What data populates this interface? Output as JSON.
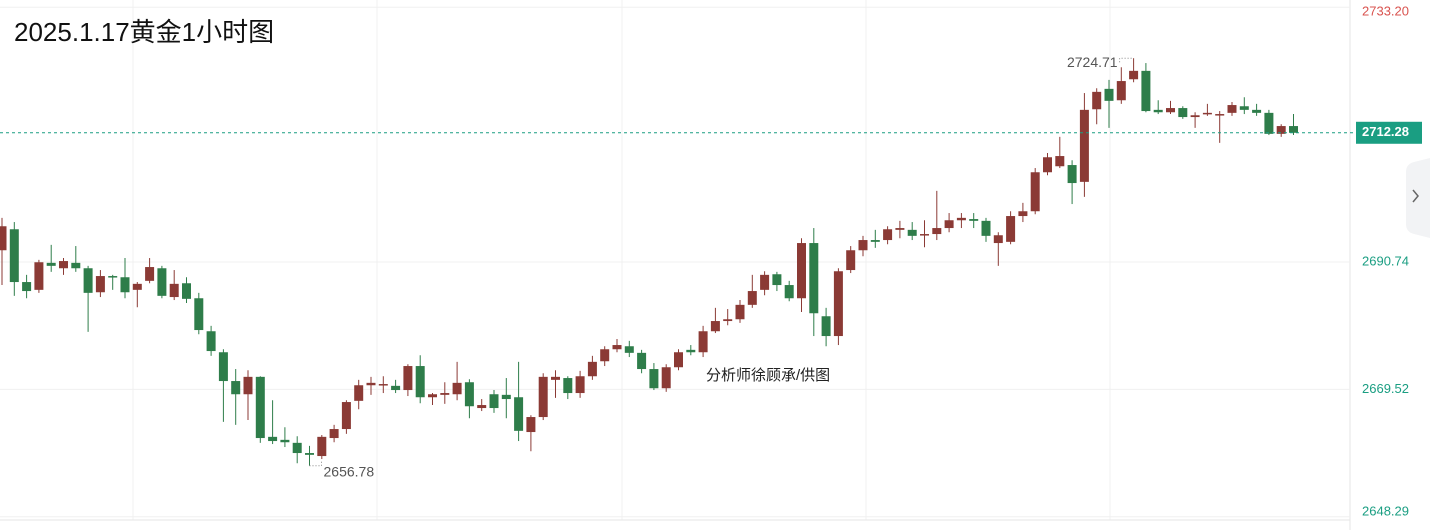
{
  "chart_data": {
    "type": "candlestick",
    "title": "2025.1.17黄金1小时图",
    "watermark": "分析师徐顾承/供图",
    "up_color": "#8b3a35",
    "down_color": "#2e7d4a",
    "tick_up_color": "#d9534f",
    "tick_down_color": "#1a9e82",
    "grid": true,
    "ylim": [
      2647.74,
      2734.41
    ],
    "yticks": [
      {
        "value": 2733.2,
        "label": "2733.20"
      },
      2690.74,
      2669.52,
      2648.29
    ],
    "last_price": 2712.28,
    "high_label": 2724.71,
    "low_label": 2656.78,
    "open": [
      2692.7,
      2696.2,
      2687.4,
      2686.1,
      2690.6,
      2689.7,
      2690.6,
      2689.7,
      2685.7,
      2688.4,
      2688.2,
      2686.1,
      2687.6,
      2689.7,
      2684.9,
      2687.2,
      2684.7,
      2679.2,
      2675.7,
      2670.9,
      2668.7,
      2671.6,
      2661.6,
      2661.1,
      2660.6,
      2658.9,
      2658.4,
      2661.4,
      2662.9,
      2667.6,
      2670.2,
      2670.2,
      2670.1,
      2669.4,
      2673.4,
      2668.2,
      2668.6,
      2668.7,
      2670.7,
      2666.4,
      2668.7,
      2668.6,
      2668.2,
      2662.4,
      2664.9,
      2671.1,
      2671.4,
      2668.9,
      2671.7,
      2674.2,
      2676.2,
      2676.7,
      2675.6,
      2672.9,
      2669.7,
      2673.2,
      2676.1,
      2675.7,
      2679.2,
      2680.9,
      2681.2,
      2683.6,
      2686.1,
      2688.7,
      2686.9,
      2684.7,
      2693.9,
      2681.7,
      2678.4,
      2689.4,
      2692.7,
      2694.4,
      2694.4,
      2696.1,
      2696.1,
      2695.2,
      2695.4,
      2696.4,
      2697.7,
      2697.9,
      2697.6,
      2693.9,
      2694.1,
      2698.4,
      2699.2,
      2705.7,
      2706.7,
      2706.9,
      2704.1,
      2716.2,
      2719.6,
      2717.7,
      2721.2,
      2722.6,
      2716.1,
      2715.7,
      2716.4,
      2714.9,
      2715.4,
      2715.2,
      2715.6,
      2716.7,
      2716.1,
      2715.6,
      2712.1,
      2713.4
    ],
    "high": [
      2698.1,
      2697.4,
      2688.6,
      2691.1,
      2693.6,
      2691.4,
      2693.4,
      2690.1,
      2689.4,
      2688.6,
      2691.4,
      2687.4,
      2691.4,
      2690.1,
      2689.4,
      2688.2,
      2685.6,
      2680.1,
      2676.2,
      2672.9,
      2672.7,
      2671.7,
      2667.7,
      2663.2,
      2661.7,
      2660.1,
      2661.9,
      2663.6,
      2667.7,
      2671.1,
      2671.6,
      2671.7,
      2671.1,
      2673.7,
      2675.2,
      2668.9,
      2670.7,
      2674.1,
      2671.2,
      2667.9,
      2669.4,
      2671.4,
      2674.1,
      2665.2,
      2672.2,
      2672.7,
      2671.7,
      2672.6,
      2675.1,
      2676.7,
      2677.9,
      2677.6,
      2676.1,
      2673.9,
      2673.7,
      2676.2,
      2676.9,
      2680.1,
      2683.1,
      2682.9,
      2684.4,
      2688.6,
      2689.2,
      2689.1,
      2687.6,
      2694.7,
      2696.4,
      2683.1,
      2689.7,
      2693.4,
      2695.1,
      2696.1,
      2696.7,
      2697.6,
      2697.4,
      2697.7,
      2702.6,
      2698.9,
      2698.9,
      2698.9,
      2698.1,
      2695.7,
      2699.2,
      2700.6,
      2706.4,
      2708.9,
      2711.6,
      2707.7,
      2718.9,
      2719.7,
      2721.1,
      2723.2,
      2724.71,
      2723.9,
      2717.7,
      2717.6,
      2716.7,
      2715.7,
      2717.1,
      2715.9,
      2717.4,
      2718.2,
      2717.1,
      2716.1,
      2713.7,
      2715.4
    ],
    "low": [
      2686.9,
      2685.1,
      2684.7,
      2685.6,
      2689.1,
      2688.6,
      2689.1,
      2679.1,
      2684.9,
      2686.1,
      2684.7,
      2683.2,
      2687.2,
      2684.7,
      2684.4,
      2683.9,
      2678.7,
      2675.1,
      2664.1,
      2663.6,
      2664.4,
      2660.6,
      2660.4,
      2659.9,
      2657.2,
      2656.78,
      2657.9,
      2660.7,
      2662.1,
      2666.2,
      2668.6,
      2668.9,
      2668.9,
      2668.4,
      2667.2,
      2666.9,
      2667.1,
      2667.7,
      2664.7,
      2665.9,
      2665.6,
      2664.7,
      2660.9,
      2659.2,
      2664.4,
      2668.1,
      2667.9,
      2668.1,
      2671.1,
      2673.4,
      2675.7,
      2674.9,
      2672.2,
      2669.4,
      2669.1,
      2672.7,
      2675.2,
      2674.9,
      2678.9,
      2680.2,
      2680.6,
      2683.1,
      2685.2,
      2685.9,
      2684.2,
      2682.4,
      2678.4,
      2676.7,
      2676.9,
      2688.9,
      2691.7,
      2693.1,
      2693.7,
      2694.7,
      2694.4,
      2693.2,
      2694.4,
      2695.7,
      2696.4,
      2696.4,
      2694.1,
      2690.1,
      2693.7,
      2697.4,
      2698.7,
      2705.2,
      2706.4,
      2700.4,
      2701.6,
      2713.7,
      2713.1,
      2717.1,
      2720.7,
      2715.7,
      2715.4,
      2715.4,
      2714.6,
      2713.1,
      2715.1,
      2710.6,
      2715.1,
      2715.4,
      2715.1,
      2711.9,
      2711.6,
      2711.9
    ],
    "close": [
      2696.7,
      2687.4,
      2685.9,
      2690.7,
      2690.1,
      2690.9,
      2689.7,
      2685.6,
      2688.4,
      2688.2,
      2685.7,
      2687.1,
      2689.9,
      2685.1,
      2687.1,
      2684.6,
      2679.4,
      2675.9,
      2670.9,
      2668.7,
      2671.6,
      2661.4,
      2660.9,
      2660.7,
      2658.9,
      2658.6,
      2661.6,
      2662.9,
      2667.4,
      2670.2,
      2670.6,
      2670.4,
      2669.4,
      2673.4,
      2668.2,
      2668.7,
      2668.9,
      2670.6,
      2666.7,
      2666.9,
      2666.4,
      2667.9,
      2662.6,
      2664.9,
      2671.6,
      2671.6,
      2668.9,
      2671.7,
      2674.1,
      2676.2,
      2676.9,
      2675.6,
      2672.9,
      2669.7,
      2673.2,
      2675.7,
      2675.7,
      2679.2,
      2680.9,
      2681.2,
      2683.6,
      2685.9,
      2688.6,
      2686.9,
      2684.7,
      2693.9,
      2682.2,
      2678.4,
      2689.2,
      2692.7,
      2694.4,
      2694.1,
      2696.2,
      2696.4,
      2695.1,
      2695.4,
      2696.4,
      2697.7,
      2698.1,
      2697.6,
      2695.1,
      2695.2,
      2698.4,
      2699.2,
      2705.7,
      2708.2,
      2708.4,
      2703.9,
      2716.1,
      2719.1,
      2717.6,
      2720.9,
      2722.6,
      2715.9,
      2715.7,
      2716.4,
      2714.9,
      2715.2,
      2715.6,
      2715.4,
      2716.9,
      2716.1,
      2715.6,
      2712.1,
      2713.4,
      2712.28
    ]
  }
}
